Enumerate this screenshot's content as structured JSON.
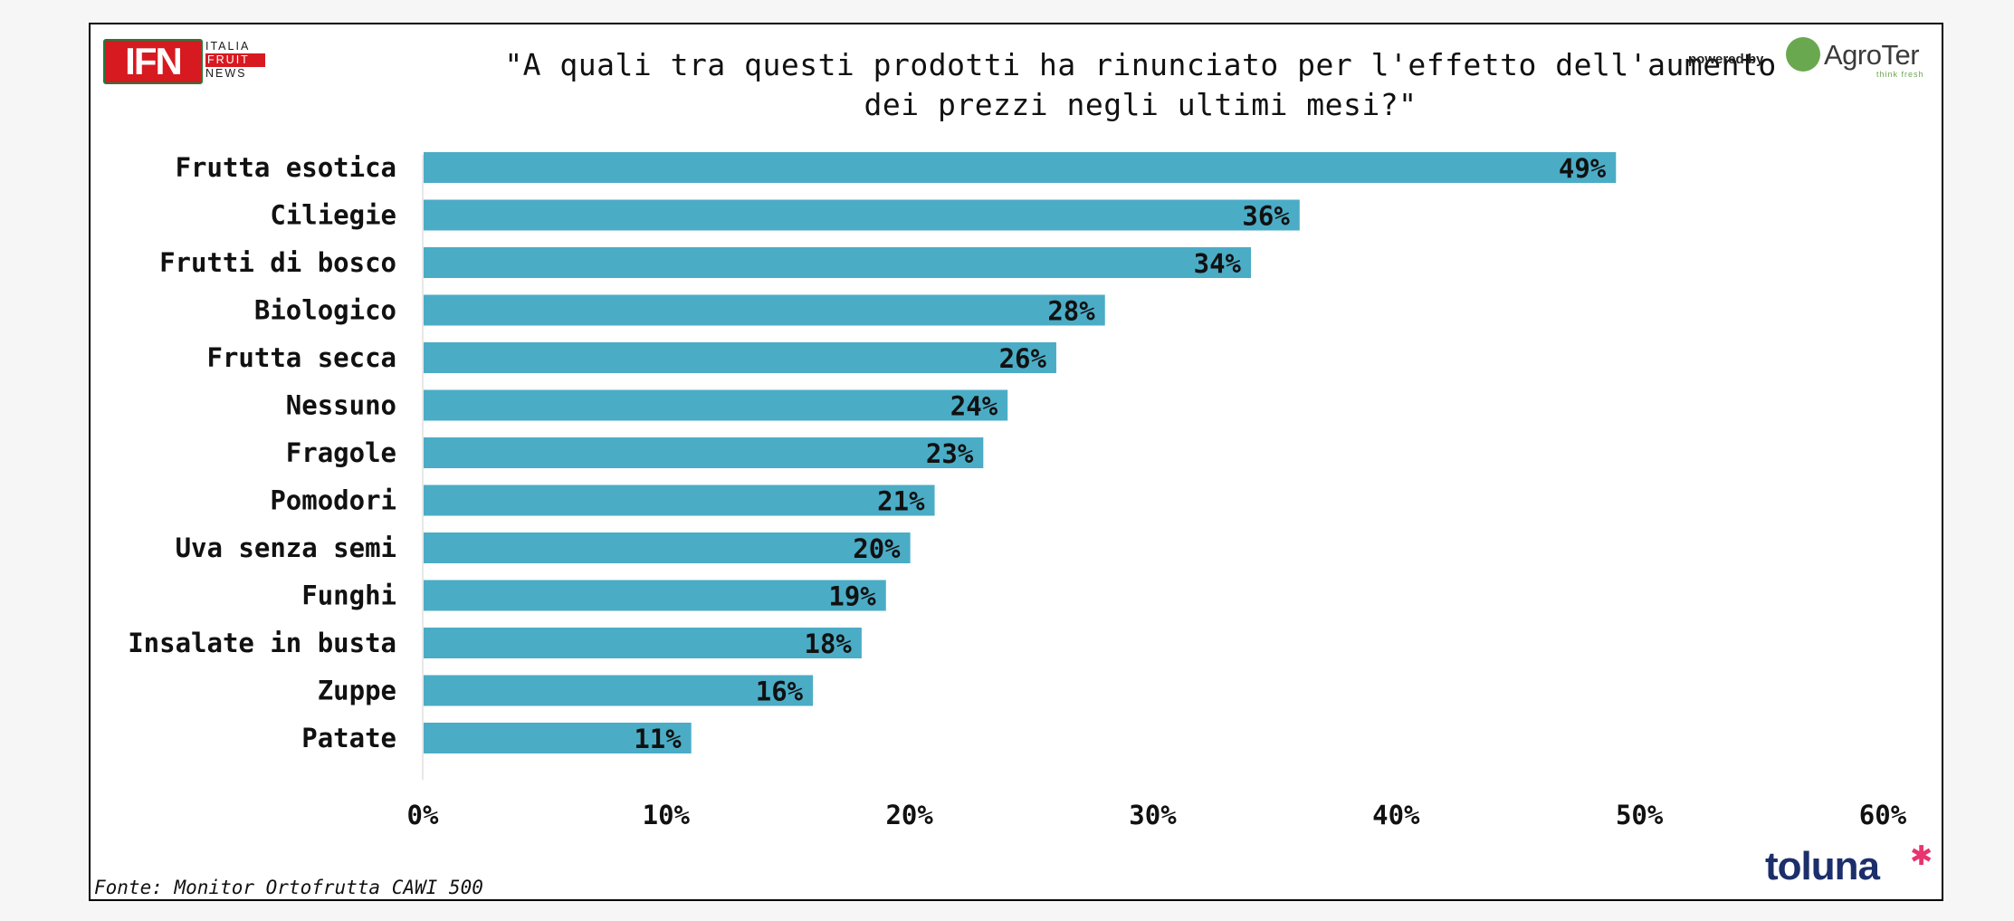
{
  "title_lines": [
    "\"A quali tra questi prodotti ha rinunciato per l'effetto dell'aumento",
    "dei prezzi negli ultimi mesi?\""
  ],
  "source": "Fonte: Monitor Ortofrutta CAWI 500",
  "logos": {
    "ifn_mark": "IFN",
    "ifn_lines": [
      "ITALIA",
      "FRUIT",
      "NEWS"
    ],
    "powered_by": "powered by",
    "agroter_name": "AgroTer",
    "agroter_tagline": "think fresh",
    "toluna_name": "toluna",
    "toluna_star": "✱"
  },
  "colors": {
    "bar": "#4bacc6",
    "brand_red": "#d71920",
    "brand_green": "#6aa84f",
    "toluna_navy": "#1c2f6b",
    "toluna_pink": "#e6356f"
  },
  "chart_data": {
    "type": "bar",
    "orientation": "horizontal",
    "categories": [
      "Frutta esotica",
      "Ciliegie",
      "Frutti di bosco",
      "Biologico",
      "Frutta secca",
      "Nessuno",
      "Fragole",
      "Pomodori",
      "Uva senza semi",
      "Funghi",
      "Insalate in busta",
      "Zuppe",
      "Patate"
    ],
    "values": [
      49,
      36,
      34,
      28,
      26,
      24,
      23,
      21,
      20,
      19,
      18,
      16,
      11
    ],
    "value_labels": [
      "49%",
      "36%",
      "34%",
      "28%",
      "26%",
      "24%",
      "23%",
      "21%",
      "20%",
      "19%",
      "18%",
      "16%",
      "11%"
    ],
    "xlim": [
      0,
      60
    ],
    "x_ticks": [
      0,
      10,
      20,
      30,
      40,
      50,
      60
    ],
    "x_tick_labels": [
      "0%",
      "10%",
      "20%",
      "30%",
      "40%",
      "50%",
      "60%"
    ],
    "grid": false,
    "legend": "none"
  }
}
